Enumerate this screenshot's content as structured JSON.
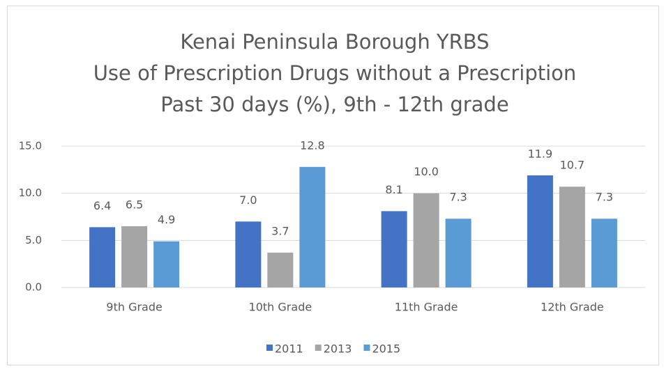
{
  "chart_data": {
    "type": "bar",
    "title": [
      "Kenai Peninsula Borough YRBS",
      "Use of Prescription Drugs without a Prescription",
      "Past 30 days (%), 9th - 12th grade"
    ],
    "categories": [
      "9th Grade",
      "10th Grade",
      "11th Grade",
      "12th Grade"
    ],
    "series": [
      {
        "name": "2011",
        "color": "#4472c4",
        "values": [
          6.4,
          7.0,
          8.1,
          11.9
        ],
        "value_labels": [
          "6.4",
          "7.0",
          "8.1",
          "11.9"
        ]
      },
      {
        "name": "2013",
        "color": "#a5a5a5",
        "values": [
          6.5,
          3.7,
          10.0,
          10.7
        ],
        "value_labels": [
          "6.5",
          "3.7",
          "10.0",
          "10.7"
        ]
      },
      {
        "name": "2015",
        "color": "#5b9bd5",
        "values": [
          4.9,
          12.8,
          7.3,
          7.3
        ],
        "value_labels": [
          "4.9",
          "12.8",
          "7.3",
          "7.3"
        ]
      }
    ],
    "ylim": [
      0,
      15
    ],
    "yticks": [
      {
        "value": 0,
        "label": "0.0"
      },
      {
        "value": 5,
        "label": "5.0"
      },
      {
        "value": 10,
        "label": "10.0"
      },
      {
        "value": 15,
        "label": "15.0"
      }
    ],
    "grid": true,
    "legend": "bottom"
  }
}
